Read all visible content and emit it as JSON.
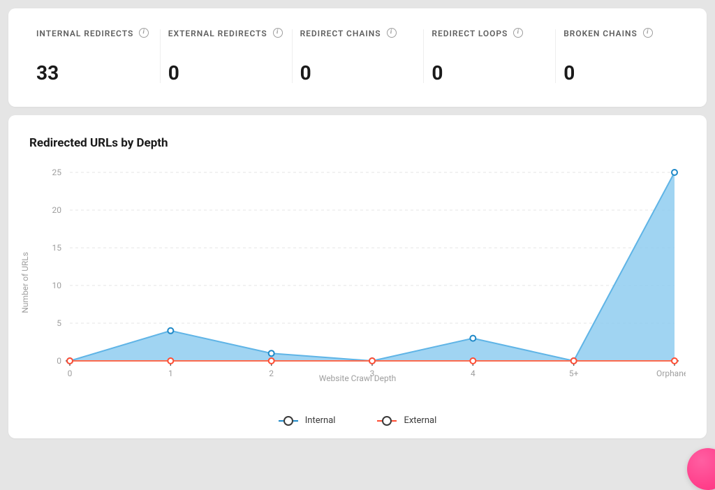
{
  "stats": [
    {
      "label": "INTERNAL REDIRECTS",
      "value": "33"
    },
    {
      "label": "EXTERNAL REDIRECTS",
      "value": "0"
    },
    {
      "label": "REDIRECT CHAINS",
      "value": "0"
    },
    {
      "label": "REDIRECT LOOPS",
      "value": "0"
    },
    {
      "label": "BROKEN CHAINS",
      "value": "0"
    }
  ],
  "chart": {
    "title": "Redirected URLs by Depth",
    "type": "area",
    "x_label": "Website Crawl Depth",
    "y_label": "Number of URLs",
    "categories": [
      "0",
      "1",
      "2",
      "3",
      "4",
      "5+",
      "Orphaned"
    ],
    "ylim": [
      0,
      25
    ],
    "ytick_step": 5,
    "grid_color": "#e6e6e6",
    "axis_color": "#555555",
    "background_color": "#ffffff",
    "label_fontsize": 12,
    "tick_fontsize": 12,
    "series": [
      {
        "name": "Internal",
        "stroke": "#5fb4e6",
        "fill": "#8fcdf0",
        "fill_opacity": 0.85,
        "marker_border": "#1e88c7",
        "marker_fill": "#ffffff",
        "marker_radius": 4,
        "line_width": 2,
        "values": [
          0,
          4,
          1,
          0,
          3,
          0,
          25
        ]
      },
      {
        "name": "External",
        "stroke": "#ff6a4d",
        "fill": "none",
        "marker_border": "#ff4d33",
        "marker_fill": "#ffffff",
        "marker_radius": 4,
        "line_width": 2,
        "values": [
          0,
          0,
          0,
          0,
          0,
          0,
          0
        ]
      }
    ],
    "legend": [
      {
        "label": "Internal",
        "color": "#1e88c7"
      },
      {
        "label": "External",
        "color": "#ff4d33"
      }
    ]
  },
  "fab_color": "#ff2e7e"
}
